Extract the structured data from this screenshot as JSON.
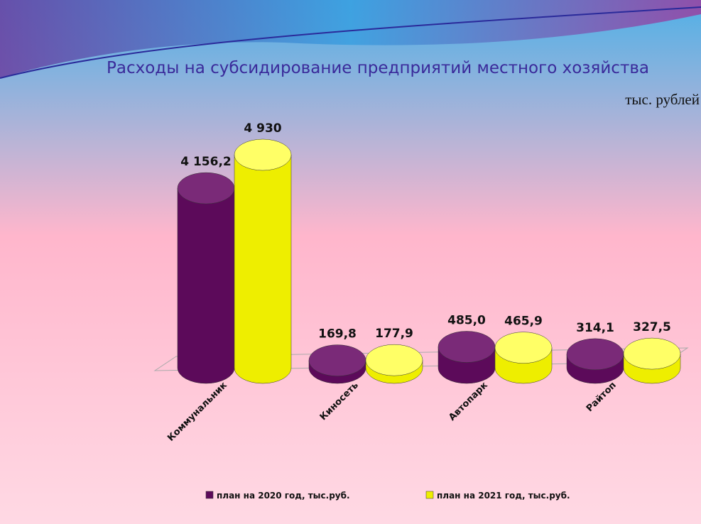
{
  "chart_data": {
    "type": "bar3d",
    "title": "Расходы на субсидирование предприятий местного хозяйства",
    "subtitle": "тыс. рублей",
    "categories": [
      "Коммунальник",
      "Киносеть",
      "Автопарк",
      "Райтоп"
    ],
    "series": [
      {
        "name": "план на 2020 год, тыс.руб.",
        "color": "#5c0a5a",
        "values": [
          4156.2,
          169.8,
          485.0,
          314.1
        ],
        "value_labels": [
          "4 156,2",
          "169,8",
          "485,0",
          "314,1"
        ]
      },
      {
        "name": "план на 2021 год, тыс.руб.",
        "color": "#eeee00",
        "values": [
          4930,
          177.9,
          465.9,
          327.5
        ],
        "value_labels": [
          "4 930",
          "177,9",
          "465,9",
          "327,5"
        ]
      }
    ],
    "legend": "bottom"
  }
}
